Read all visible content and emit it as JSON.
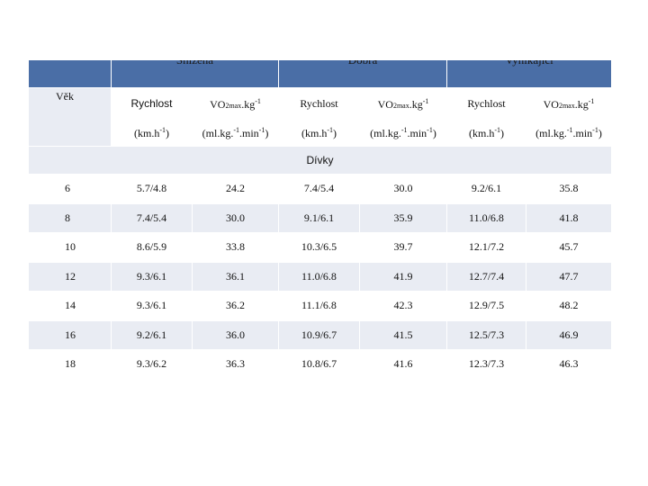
{
  "table": {
    "group_headers": [
      "Snížená",
      "Dobrá",
      "Vynikající"
    ],
    "age_label": "Věk",
    "col_speed": "Rychlost",
    "col_vo2_main": "VO",
    "col_vo2_sub": "2max",
    "col_vo2_rest": ".kg",
    "col_vo2_sup": "-1",
    "unit_speed_main": "(km.h",
    "unit_speed_sup": "-1",
    "unit_speed_end": ")",
    "unit_vo2_main": "(ml.kg.",
    "unit_vo2_sup1": "-1",
    "unit_vo2_mid": ".min",
    "unit_vo2_sup2": "-1",
    "unit_vo2_end": ")",
    "section_label": "Dívky",
    "rows": [
      {
        "age": "6",
        "c1": "5.7/4.8",
        "c2": "24.2",
        "c3": "7.4/5.4",
        "c4": "30.0",
        "c5": "9.2/6.1",
        "c6": "35.8"
      },
      {
        "age": "8",
        "c1": "7.4/5.4",
        "c2": "30.0",
        "c3": "9.1/6.1",
        "c4": "35.9",
        "c5": "11.0/6.8",
        "c6": "41.8"
      },
      {
        "age": "10",
        "c1": "8.6/5.9",
        "c2": "33.8",
        "c3": "10.3/6.5",
        "c4": "39.7",
        "c5": "12.1/7.2",
        "c6": "45.7"
      },
      {
        "age": "12",
        "c1": "9.3/6.1",
        "c2": "36.1",
        "c3": "11.0/6.8",
        "c4": "41.9",
        "c5": "12.7/7.4",
        "c6": "47.7"
      },
      {
        "age": "14",
        "c1": "9.3/6.1",
        "c2": "36.2",
        "c3": "11.1/6.8",
        "c4": "42.3",
        "c5": "12.9/7.5",
        "c6": "48.2"
      },
      {
        "age": "16",
        "c1": "9.2/6.1",
        "c2": "36.0",
        "c3": "10.9/6.7",
        "c4": "41.5",
        "c5": "12.5/7.3",
        "c6": "46.9"
      },
      {
        "age": "18",
        "c1": "9.3/6.2",
        "c2": "36.3",
        "c3": "10.8/6.7",
        "c4": "41.6",
        "c5": "12.3/7.3",
        "c6": "46.3"
      }
    ]
  }
}
